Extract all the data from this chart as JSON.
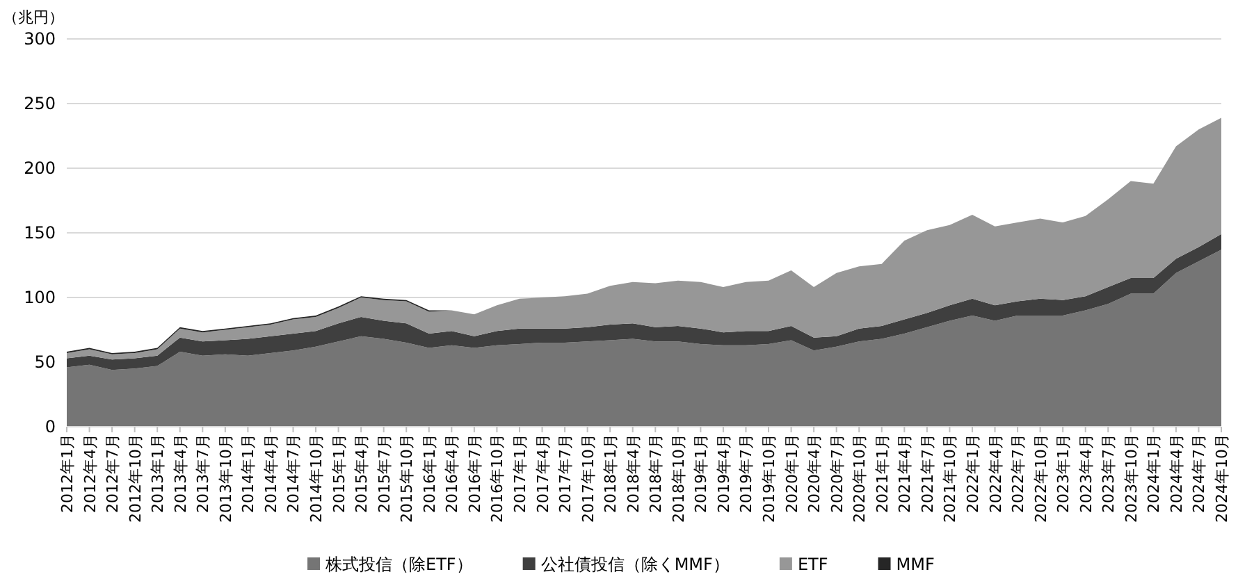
{
  "chart_data": {
    "type": "area",
    "stacked": true,
    "ylabel": "（兆円）",
    "categories": [
      "2012年1月",
      "2012年4月",
      "2012年7月",
      "2012年10月",
      "2013年1月",
      "2013年4月",
      "2013年7月",
      "2013年10月",
      "2014年1月",
      "2014年4月",
      "2014年7月",
      "2014年10月",
      "2015年1月",
      "2015年4月",
      "2015年7月",
      "2015年10月",
      "2016年1月",
      "2016年4月",
      "2016年7月",
      "2016年10月",
      "2017年1月",
      "2017年4月",
      "2017年7月",
      "2017年10月",
      "2018年1月",
      "2018年4月",
      "2018年7月",
      "2018年10月",
      "2019年1月",
      "2019年4月",
      "2019年7月",
      "2019年10月",
      "2020年1月",
      "2020年4月",
      "2020年7月",
      "2020年10月",
      "2021年1月",
      "2021年4月",
      "2021年7月",
      "2021年10月",
      "2022年1月",
      "2022年4月",
      "2022年7月",
      "2022年10月",
      "2023年1月",
      "2023年4月",
      "2023年7月",
      "2023年10月",
      "2024年1月",
      "2024年4月",
      "2024年7月",
      "2024年10月"
    ],
    "series": [
      {
        "name": "株式投信（除ETF）",
        "color": "#757575",
        "values": [
          46,
          48,
          44,
          45,
          47,
          58,
          55,
          56,
          55,
          57,
          59,
          62,
          66,
          70,
          68,
          65,
          61,
          63,
          61,
          63,
          64,
          65,
          65,
          66,
          67,
          68,
          66,
          66,
          64,
          63,
          63,
          64,
          67,
          59,
          62,
          66,
          68,
          72,
          77,
          82,
          86,
          82,
          86,
          86,
          86,
          90,
          95,
          103,
          103,
          119,
          128,
          137
        ]
      },
      {
        "name": "公社債投信（除くMMF）",
        "color": "#3f3f3f",
        "values": [
          7,
          7,
          8,
          8,
          8,
          11,
          11,
          11,
          13,
          13,
          13,
          12,
          14,
          15,
          14,
          15,
          11,
          11,
          9,
          11,
          12,
          11,
          11,
          11,
          12,
          12,
          11,
          12,
          12,
          10,
          11,
          10,
          11,
          10,
          8,
          10,
          10,
          11,
          11,
          12,
          13,
          12,
          11,
          13,
          12,
          11,
          13,
          12,
          12,
          11,
          11,
          12
        ]
      },
      {
        "name": "ETF",
        "color": "#979797",
        "values": [
          4,
          5,
          4,
          4,
          5,
          7,
          7,
          8,
          9,
          9,
          11,
          11,
          12,
          15,
          16,
          17,
          17,
          16,
          17,
          20,
          23,
          24,
          25,
          26,
          30,
          32,
          34,
          35,
          36,
          35,
          38,
          39,
          43,
          39,
          49,
          48,
          48,
          61,
          64,
          62,
          65,
          61,
          61,
          62,
          60,
          62,
          68,
          75,
          73,
          87,
          91,
          90
        ]
      },
      {
        "name": "MMF",
        "color": "#262626",
        "values": [
          1,
          1,
          1,
          1,
          1,
          1,
          1,
          1,
          1,
          1,
          1,
          1,
          1,
          1,
          1,
          1,
          1,
          0,
          0,
          0,
          0,
          0,
          0,
          0,
          0,
          0,
          0,
          0,
          0,
          0,
          0,
          0,
          0,
          0,
          0,
          0,
          0,
          0,
          0,
          0,
          0,
          0,
          0,
          0,
          0,
          0,
          0,
          0,
          0,
          0,
          0,
          0
        ]
      }
    ],
    "ylim": [
      0,
      300
    ],
    "yticks": [
      0,
      50,
      100,
      150,
      200,
      250,
      300
    ],
    "grid": "y",
    "legend": "bottom"
  }
}
